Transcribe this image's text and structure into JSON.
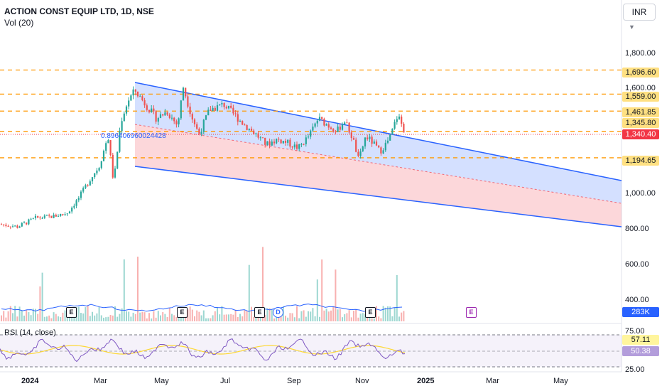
{
  "header": {
    "title": "ACTION CONST EQUIP LTD, 1D, NSE",
    "volume_label": "Vol (20)",
    "rsi_label": "RSI (14, close)"
  },
  "currency": {
    "label": "INR"
  },
  "price_axis": [
    "1,800.00",
    "1,600.00",
    "1,000.00",
    "800.00",
    "600.00",
    "400.00"
  ],
  "levels": [
    {
      "value": "1,696.60",
      "price": 1696.6
    },
    {
      "value": "1,559.00",
      "price": 1559.0
    },
    {
      "value": "1,461.85",
      "price": 1461.85
    },
    {
      "value": "1,345.80",
      "price": 1345.8
    },
    {
      "value": "1,194.65",
      "price": 1194.65
    }
  ],
  "current_price": "1,340.40",
  "volume_tag": "283K",
  "rsi": {
    "top": "75.00",
    "bottom": "25.00",
    "value": "57.11",
    "ma_value": "50.38"
  },
  "note": "0.896406960024428",
  "x_axis": [
    {
      "label": "2024",
      "year": true
    },
    {
      "label": "Mar",
      "year": false
    },
    {
      "label": "May",
      "year": false
    },
    {
      "label": "Jul",
      "year": false
    },
    {
      "label": "Sep",
      "year": false
    },
    {
      "label": "Nov",
      "year": false
    },
    {
      "label": "2025",
      "year": true
    },
    {
      "label": "Mar",
      "year": false
    },
    {
      "label": "May",
      "year": false
    }
  ],
  "events": [
    "E",
    "E",
    "E",
    "D",
    "E",
    "E"
  ],
  "colors": {
    "up": "#26a69a",
    "down": "#ef5350",
    "level_line": "#ff9800",
    "channel": "#2962ff",
    "rsi_line": "#7e57c2",
    "rsi_ma": "#fdd835"
  }
}
